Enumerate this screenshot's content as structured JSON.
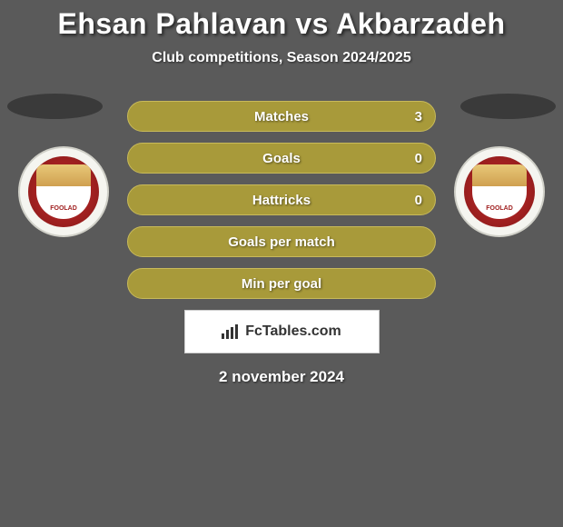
{
  "header": {
    "title": "Ehsan Pahlavan vs Akbarzadeh",
    "subtitle": "Club competitions, Season 2024/2025"
  },
  "stats": [
    {
      "label": "Matches",
      "value_right": "3",
      "has_value": true
    },
    {
      "label": "Goals",
      "value_right": "0",
      "has_value": true
    },
    {
      "label": "Hattricks",
      "value_right": "0",
      "has_value": true
    },
    {
      "label": "Goals per match",
      "value_right": "",
      "has_value": false
    },
    {
      "label": "Min per goal",
      "value_right": "",
      "has_value": false
    }
  ],
  "style": {
    "pill_bg": "#a89a3a",
    "pill_border": "#c8ba5a",
    "pill_height": 34,
    "pill_radius": 17,
    "pill_gap": 12,
    "pill_width": 340,
    "text_color": "#ffffff",
    "label_fontsize": 15,
    "title_fontsize": 32,
    "subtitle_fontsize": 16,
    "background": "#5a5a5a",
    "badge_bg": "#f5f5f0",
    "badge_inner": "#a02020",
    "shadow_ellipse": "#3a3a3a"
  },
  "badges": {
    "left": {
      "name": "foolad-fc",
      "text": "FOOLAD"
    },
    "right": {
      "name": "foolad-fc",
      "text": "FOOLAD"
    }
  },
  "footer": {
    "brand": "FcTables.com",
    "date": "2 november 2024"
  }
}
